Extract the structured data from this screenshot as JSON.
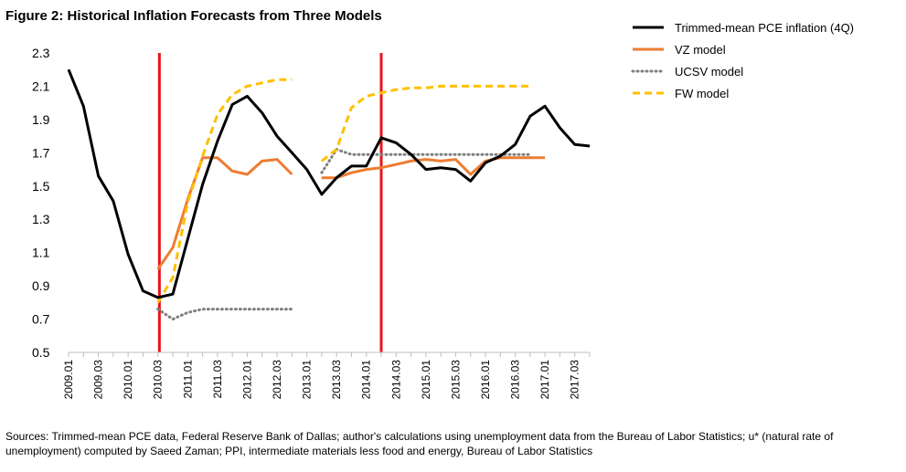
{
  "chart_data": {
    "type": "line",
    "title": "Figure 2: Historical Inflation Forecasts from Three Models",
    "xlabel": "",
    "ylabel": "",
    "ylim": [
      0.5,
      2.3
    ],
    "yticks": [
      0.5,
      0.7,
      0.9,
      1.1,
      1.3,
      1.5,
      1.7,
      1.9,
      2.1,
      2.3
    ],
    "x_index_range": [
      0,
      35
    ],
    "xtick_labels": [
      "2009.01",
      "2009.03",
      "2010.01",
      "2010.03",
      "2011.01",
      "2011.03",
      "2012.01",
      "2012.03",
      "2013.01",
      "2013.03",
      "2014.01",
      "2014.03",
      "2015.01",
      "2015.03",
      "2016.01",
      "2016.03",
      "2017.01",
      "2017.03"
    ],
    "xtick_step": 2,
    "vertical_lines": [
      {
        "label": "2010.03",
        "x": 6.1,
        "color": "#e8141b"
      },
      {
        "label": "2014.01",
        "x": 21.0,
        "color": "#e8141b"
      }
    ],
    "series": [
      {
        "name": "Trimmed-mean PCE inflation (4Q)",
        "color": "#000000",
        "style": "solid",
        "points": [
          [
            0,
            2.2
          ],
          [
            1,
            1.98
          ],
          [
            2,
            1.56
          ],
          [
            3,
            1.41
          ],
          [
            4,
            1.09
          ],
          [
            5,
            0.87
          ],
          [
            6,
            0.83
          ],
          [
            7,
            0.85
          ],
          [
            8,
            1.18
          ],
          [
            9,
            1.51
          ],
          [
            10,
            1.77
          ],
          [
            11,
            1.99
          ],
          [
            12,
            2.04
          ],
          [
            13,
            1.94
          ],
          [
            14,
            1.8
          ],
          [
            15,
            1.7
          ],
          [
            16,
            1.6
          ],
          [
            17,
            1.45
          ],
          [
            18,
            1.55
          ],
          [
            19,
            1.62
          ],
          [
            20,
            1.62
          ],
          [
            21,
            1.79
          ],
          [
            22,
            1.76
          ],
          [
            23,
            1.69
          ],
          [
            24,
            1.6
          ],
          [
            25,
            1.61
          ],
          [
            26,
            1.6
          ],
          [
            27,
            1.53
          ],
          [
            28,
            1.64
          ],
          [
            29,
            1.68
          ],
          [
            30,
            1.75
          ],
          [
            31,
            1.92
          ],
          [
            32,
            1.98
          ],
          [
            33,
            1.85
          ],
          [
            34,
            1.75
          ],
          [
            35,
            1.74
          ]
        ]
      },
      {
        "name": "VZ model",
        "color": "#ed7d31",
        "style": "solid",
        "points": [
          [
            6,
            1.0
          ],
          [
            7,
            1.13
          ],
          [
            8,
            1.42
          ],
          [
            9,
            1.67
          ],
          [
            10,
            1.67
          ],
          [
            11,
            1.59
          ],
          [
            12,
            1.57
          ],
          [
            13,
            1.65
          ],
          [
            14,
            1.66
          ],
          [
            15,
            1.57
          ],
          [
            null,
            null
          ],
          [
            17,
            1.55
          ],
          [
            18,
            1.55
          ],
          [
            19,
            1.58
          ],
          [
            20,
            1.6
          ],
          [
            21,
            1.61
          ],
          [
            22,
            1.63
          ],
          [
            23,
            1.65
          ],
          [
            24,
            1.66
          ],
          [
            25,
            1.65
          ],
          [
            26,
            1.66
          ],
          [
            27,
            1.57
          ],
          [
            28,
            1.65
          ],
          [
            29,
            1.67
          ],
          [
            30,
            1.67
          ],
          [
            31,
            1.67
          ],
          [
            32,
            1.67
          ]
        ]
      },
      {
        "name": "UCSV model",
        "color": "#7f7f7f",
        "style": "dotted",
        "points": [
          [
            6,
            0.76
          ],
          [
            7,
            0.7
          ],
          [
            8,
            0.74
          ],
          [
            9,
            0.76
          ],
          [
            10,
            0.76
          ],
          [
            11,
            0.76
          ],
          [
            12,
            0.76
          ],
          [
            13,
            0.76
          ],
          [
            14,
            0.76
          ],
          [
            15,
            0.76
          ],
          [
            null,
            null
          ],
          [
            17,
            1.58
          ],
          [
            18,
            1.72
          ],
          [
            19,
            1.69
          ],
          [
            20,
            1.69
          ],
          [
            21,
            1.69
          ],
          [
            22,
            1.69
          ],
          [
            23,
            1.69
          ],
          [
            24,
            1.69
          ],
          [
            25,
            1.69
          ],
          [
            26,
            1.69
          ],
          [
            27,
            1.69
          ],
          [
            28,
            1.69
          ],
          [
            29,
            1.69
          ],
          [
            30,
            1.69
          ],
          [
            31,
            1.69
          ]
        ]
      },
      {
        "name": "FW model",
        "color": "#ffc000",
        "style": "dashed",
        "points": [
          [
            6,
            0.8
          ],
          [
            7,
            0.95
          ],
          [
            8,
            1.4
          ],
          [
            9,
            1.68
          ],
          [
            10,
            1.93
          ],
          [
            11,
            2.05
          ],
          [
            12,
            2.1
          ],
          [
            13,
            2.12
          ],
          [
            14,
            2.14
          ],
          [
            15,
            2.14
          ],
          [
            null,
            null
          ],
          [
            17,
            1.65
          ],
          [
            18,
            1.72
          ],
          [
            19,
            1.97
          ],
          [
            20,
            2.04
          ],
          [
            21,
            2.06
          ],
          [
            22,
            2.08
          ],
          [
            23,
            2.09
          ],
          [
            24,
            2.09
          ],
          [
            25,
            2.1
          ],
          [
            26,
            2.1
          ],
          [
            27,
            2.1
          ],
          [
            28,
            2.1
          ],
          [
            29,
            2.1
          ],
          [
            30,
            2.1
          ],
          [
            31,
            2.1
          ]
        ]
      }
    ],
    "legend_position": "top-right"
  },
  "source_text": "Sources: Trimmed-mean PCE data, Federal Reserve Bank of Dallas; author's calculations using unemployment data from the Bureau of Labor Statistics; u* (natural rate of unemployment) computed by Saeed Zaman; PPI, intermediate materials less food and energy, Bureau of Labor Statistics"
}
